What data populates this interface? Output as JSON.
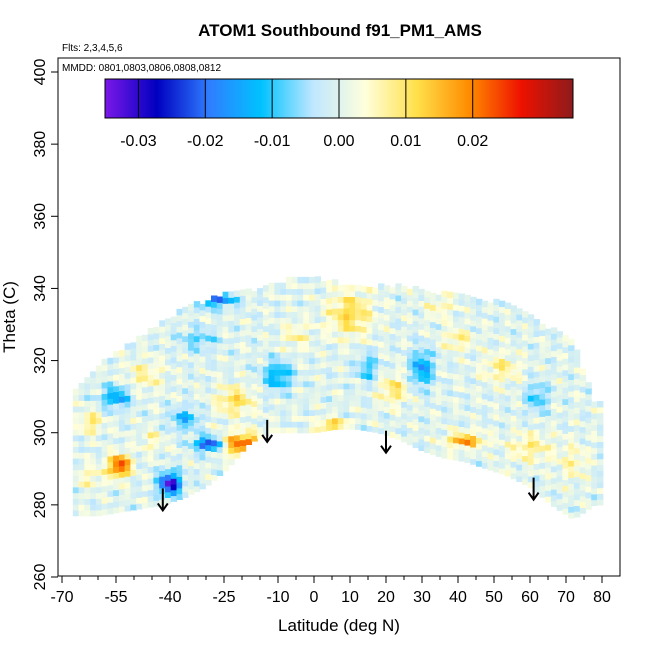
{
  "chart_data": {
    "type": "heatmap",
    "title": "ATOM1 Southbound f91_PM1_AMS",
    "annotations": {
      "flights": "Flts: 2,3,4,5,6",
      "dates": "MMDD: 0801,0803,0806,0808,0812"
    },
    "xlabel": "Latitude (deg N)",
    "ylabel": "Theta (C)",
    "xlim": [
      -70,
      80
    ],
    "ylim": [
      260,
      400
    ],
    "x_ticks_major": [
      -70,
      -55,
      -40,
      -25,
      -10,
      0,
      10,
      20,
      30,
      40,
      50,
      60,
      70,
      80
    ],
    "x_tick_labels": [
      "-70",
      "-55",
      "-40",
      "-25",
      "-10",
      "0",
      "10",
      "20",
      "30",
      "40",
      "50",
      "60",
      "70",
      "80"
    ],
    "x_ticks_minor": [
      -65,
      -60,
      -50,
      -45,
      -35,
      -30,
      -20,
      -15,
      -5,
      5,
      15,
      25,
      35,
      45,
      55,
      65,
      75
    ],
    "y_ticks": [
      260,
      280,
      300,
      320,
      340,
      360,
      380,
      400
    ],
    "y_tick_labels": [
      "260",
      "280",
      "300",
      "320",
      "340",
      "360",
      "380",
      "400"
    ],
    "colorbar": {
      "range": [
        -0.035,
        0.035
      ],
      "ticks": [
        -0.03,
        -0.02,
        -0.01,
        0.0,
        0.01,
        0.02
      ],
      "tick_labels": [
        "-0.03",
        "-0.02",
        "-0.01",
        "0.00",
        "0.01",
        "0.02"
      ],
      "colors": [
        "#7b18e8",
        "#0000c0",
        "#2f7dff",
        "#00c2ff",
        "#bfe7ff",
        "#ffffdc",
        "#ffe04a",
        "#ff8c00",
        "#ee1100",
        "#8e1b1b"
      ]
    },
    "arrows": [
      {
        "lat": -42,
        "theta": 284
      },
      {
        "lat": -13,
        "theta": 303
      },
      {
        "lat": 20,
        "theta": 300
      },
      {
        "lat": 61,
        "theta": 287
      }
    ],
    "domain": {
      "lat": [
        -66,
        -60,
        -54,
        -48,
        -42,
        -36,
        -30,
        -24,
        -18,
        -12,
        -6,
        0,
        6,
        12,
        18,
        24,
        30,
        36,
        42,
        48,
        54,
        60,
        66,
        72,
        78
      ],
      "theta_bottom": [
        277,
        277,
        278,
        279,
        280,
        282,
        285,
        290,
        297,
        300,
        300,
        300,
        301,
        301,
        300,
        298,
        295,
        293,
        292,
        290,
        288,
        285,
        280,
        276,
        280
      ],
      "theta_top": [
        312,
        318,
        322,
        326,
        330,
        334,
        336,
        338,
        339,
        340,
        342,
        342,
        341,
        341,
        340,
        340,
        339,
        338,
        337,
        336,
        336,
        332,
        328,
        325,
        308
      ]
    },
    "grid": false,
    "legend": "top"
  }
}
